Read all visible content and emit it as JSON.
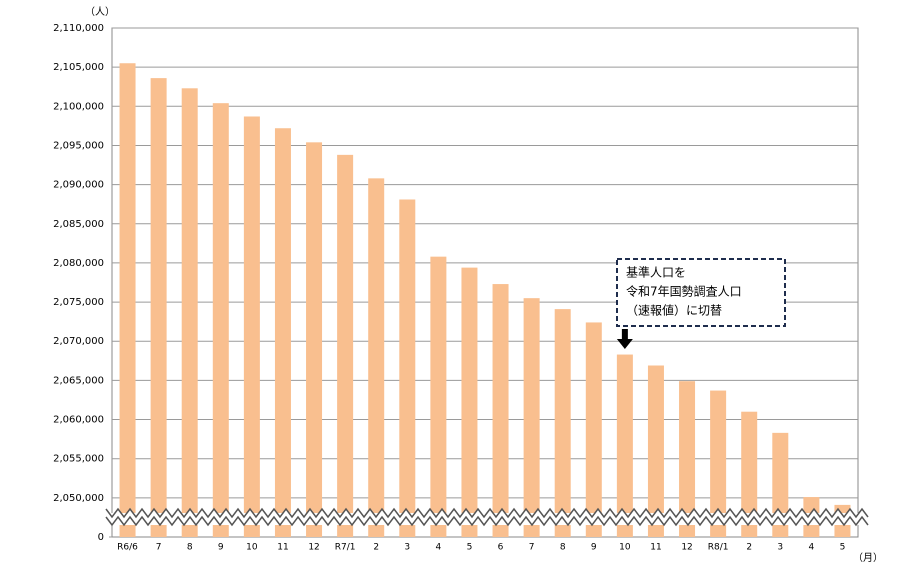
{
  "chart_data": {
    "type": "bar",
    "y_unit": "（人）",
    "x_unit": "（月）",
    "categories": [
      "R6/6",
      "7",
      "8",
      "9",
      "10",
      "11",
      "12",
      "R7/1",
      "2",
      "3",
      "4",
      "5",
      "6",
      "7",
      "8",
      "9",
      "10",
      "11",
      "12",
      "R8/1",
      "2",
      "3",
      "4",
      "5"
    ],
    "values": [
      2105500,
      2103600,
      2102300,
      2100400,
      2098700,
      2097200,
      2095400,
      2093800,
      2090800,
      2088100,
      2080800,
      2079400,
      2077300,
      2075500,
      2074100,
      2072400,
      2068300,
      2066900,
      2064900,
      2063700,
      2061000,
      2058300,
      2050100,
      2049100
    ],
    "color": "#f9bf8f",
    "ylim": [
      0,
      2110000
    ],
    "axis_break": [
      0,
      2045000
    ],
    "yticks": [
      0,
      {
        "value": 2050000,
        "label": "2,050,000"
      },
      {
        "value": 2055000,
        "label": "2,055,000"
      },
      {
        "value": 2060000,
        "label": "2,060,000"
      },
      {
        "value": 2065000,
        "label": "2,065,000"
      },
      {
        "value": 2070000,
        "label": "2,070,000"
      },
      {
        "value": 2075000,
        "label": "2,075,000"
      },
      {
        "value": 2080000,
        "label": "2,080,000"
      },
      {
        "value": 2085000,
        "label": "2,085,000"
      },
      {
        "value": 2090000,
        "label": "2,090,000"
      },
      {
        "value": 2095000,
        "label": "2,095,000"
      },
      {
        "value": 2100000,
        "label": "2,100,000"
      },
      {
        "value": 2105000,
        "label": "2,105,000"
      },
      {
        "value": 2110000,
        "label": "2,110,000"
      }
    ],
    "grid": true,
    "annotation": {
      "lines": [
        "基準人口を",
        "令和7年国勢調査人口",
        "（速報値）に切替"
      ],
      "category_index": 16
    }
  }
}
